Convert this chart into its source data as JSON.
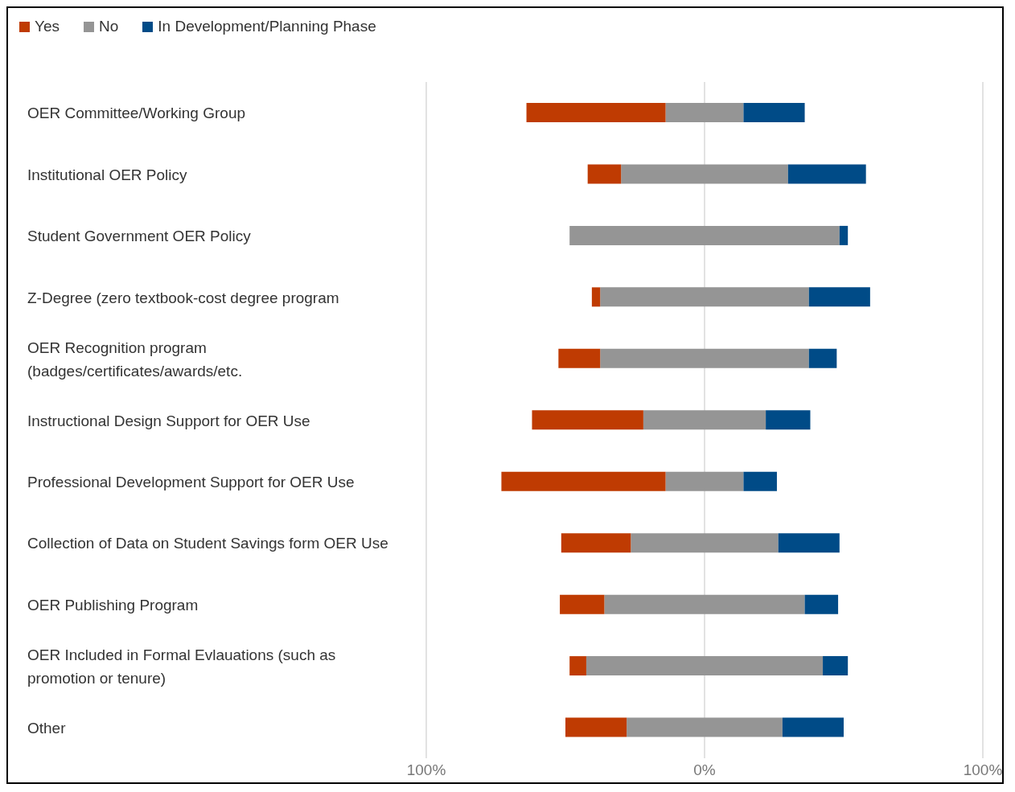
{
  "chart_data": {
    "type": "bar",
    "orientation": "horizontal",
    "stacked": true,
    "categories": [
      "OER Committee/Working Group",
      "Institutional OER Policy",
      "Student Government OER Policy",
      "Z-Degree (zero textbook-cost degree program",
      "OER Recognition program (badges/certificates/awards/etc.",
      "Instructional Design Support for OER Use",
      "Professional Development Support for OER Use",
      "Collection of Data on Student Savings form OER Use",
      "OER Publishing Program",
      "OER Included in Formal Evlauations (such as promotion or tenure)",
      "Other"
    ],
    "series": [
      {
        "color": "#959595",
        "values": [
          -14,
          -30,
          -48.5,
          -37.5,
          -37.5,
          -22,
          -14,
          -26.5,
          -36,
          -42.5,
          -28
        ]
      },
      {
        "name": "Yes",
        "color": "#bf3b02",
        "values": [
          -50,
          -12,
          0,
          -3,
          -15,
          -40,
          -59,
          -25,
          -16,
          -6,
          -22
        ]
      },
      {
        "name": "No",
        "color": "#959595",
        "values": [
          14,
          30,
          48.5,
          37.5,
          37.5,
          22,
          14,
          26.5,
          36,
          42.5,
          28
        ]
      },
      {
        "name": "In Development/Planning Phase",
        "color": "#004b87",
        "values": [
          22,
          28,
          3,
          22,
          10,
          16,
          12,
          22,
          12,
          9,
          22
        ]
      }
    ],
    "xlim": [
      -100,
      100
    ],
    "xticks": [
      {
        "value": -100,
        "label": "100%"
      },
      {
        "value": 0,
        "label": "0%"
      },
      {
        "value": 100,
        "label": "100%"
      }
    ],
    "grid": "x",
    "legend": "top left"
  }
}
